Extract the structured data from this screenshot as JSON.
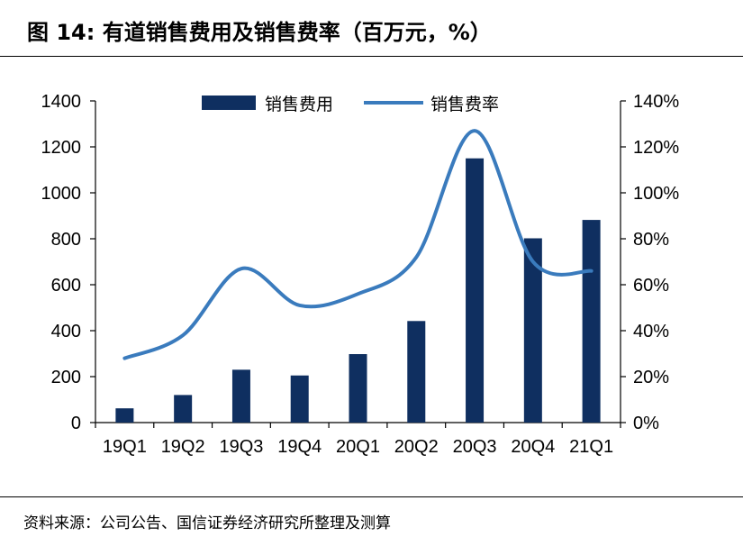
{
  "header": {
    "title": "图 14:  有道销售费用及销售费率（百万元，%）"
  },
  "footer": {
    "source": "资料来源：公司公告、国信证券经济研究所整理及测算"
  },
  "colors": {
    "bar": "#0f2f60",
    "line": "#3a7bbd",
    "axis": "#000000"
  },
  "chart_data": {
    "type": "bar+line",
    "categories": [
      "19Q1",
      "19Q2",
      "19Q3",
      "19Q4",
      "20Q1",
      "20Q2",
      "20Q3",
      "20Q4",
      "21Q1"
    ],
    "series": [
      {
        "name": "销售费用",
        "type": "bar",
        "axis": "left",
        "values": [
          62,
          120,
          230,
          205,
          298,
          442,
          1150,
          802,
          882
        ]
      },
      {
        "name": "销售费率",
        "type": "line",
        "axis": "right",
        "unit": "%",
        "values": [
          28,
          38,
          67,
          51,
          56,
          72,
          127,
          70,
          66
        ]
      }
    ],
    "y_left": {
      "min": 0,
      "max": 1400,
      "ticks": [
        "0",
        "200",
        "400",
        "600",
        "800",
        "1000",
        "1200",
        "1400"
      ]
    },
    "y_right": {
      "min": 0,
      "max": 140,
      "ticks": [
        "0%",
        "20%",
        "40%",
        "60%",
        "80%",
        "100%",
        "120%",
        "140%"
      ]
    },
    "legend_position": "top-center",
    "grid": false
  }
}
